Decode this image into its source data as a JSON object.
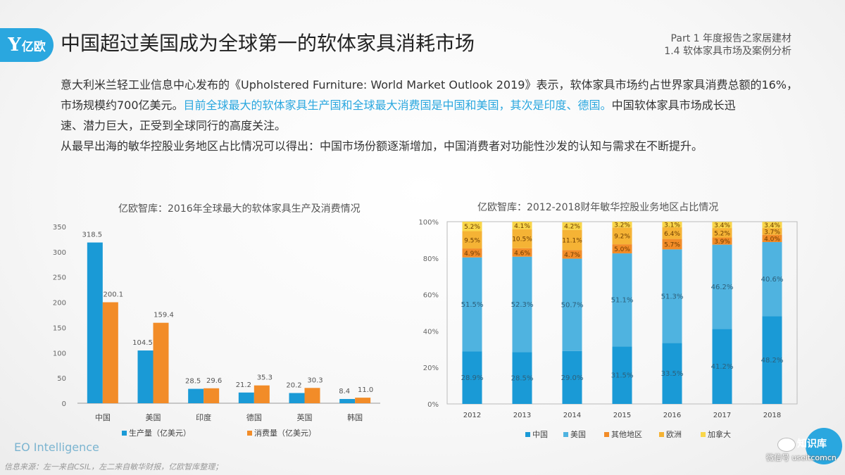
{
  "logo": {
    "mark": "Y",
    "text": "亿欧"
  },
  "header": {
    "title": "中国超过美国成为全球第一的软体家具消耗市场",
    "part_line1": "Part 1 年度报告之家居建材",
    "part_line2": "1.4 软体家具市场及案例分析"
  },
  "intro": {
    "line1": "意大利米兰轻工业信息中心发布的《Upholstered Furniture: World Market Outlook 2019》表示，软体家具市场约占世界家具消费总额的16%，",
    "line2a": "市场规模约700亿美元。",
    "line2b": "目前全球最大的软体家具生产国和全球最大消费国是中国和美国，其次是印度、德国。",
    "line2c": "中国软体家具市场成长迅",
    "line3": "速、潜力巨大，正受到全球同行的高度关注。",
    "line4": "从最早出海的敏华控股业务地区占比情况可以得出：中国市场份额逐渐增加，中国消费者对功能性沙发的认知与需求在不断提升。"
  },
  "chart_data": [
    {
      "type": "bar",
      "title": "亿欧智库：2016年全球最大的软体家具生产及消费情况",
      "categories": [
        "中国",
        "美国",
        "印度",
        "德国",
        "英国",
        "韩国"
      ],
      "series": [
        {
          "name": "生产量（亿美元）",
          "color": "#1a9ad6",
          "values": [
            318.5,
            104.5,
            28.5,
            21.2,
            20.2,
            8.4
          ]
        },
        {
          "name": "消费量（亿美元）",
          "color": "#f28c28",
          "values": [
            200.1,
            159.4,
            29.6,
            35.3,
            30.3,
            11.0
          ]
        }
      ],
      "ylim": [
        0,
        350
      ],
      "yticks": [
        0,
        50,
        100,
        150,
        200,
        250,
        300,
        350
      ],
      "legend": "bottom"
    },
    {
      "type": "bar",
      "stacked": true,
      "title": "亿欧智库：2012-2018财年敏华控股业务地区占比情况",
      "categories": [
        "2012",
        "2013",
        "2014",
        "2015",
        "2016",
        "2017",
        "2018"
      ],
      "series": [
        {
          "name": "中国",
          "color": "#1a9ad6",
          "values": [
            28.9,
            28.5,
            29.0,
            31.5,
            33.5,
            41.2,
            48.2
          ]
        },
        {
          "name": "美国",
          "color": "#4fb3e0",
          "values": [
            51.5,
            52.3,
            50.7,
            51.1,
            51.3,
            46.2,
            40.6
          ]
        },
        {
          "name": "其他地区",
          "color": "#f28c28",
          "values": [
            4.9,
            4.6,
            4.7,
            5.0,
            5.7,
            3.9,
            4.0
          ]
        },
        {
          "name": "欧洲",
          "color": "#f5b335",
          "values": [
            9.5,
            10.5,
            11.1,
            9.2,
            6.4,
            5.2,
            3.7
          ]
        },
        {
          "name": "加拿大",
          "color": "#f9d64a",
          "values": [
            5.2,
            4.1,
            4.2,
            3.2,
            3.1,
            3.4,
            3.4
          ]
        }
      ],
      "ylim": [
        0,
        100
      ],
      "yticks": [
        "0%",
        "20%",
        "40%",
        "60%",
        "80%",
        "100%"
      ],
      "legend": "bottom"
    }
  ],
  "footer": {
    "brand": "EO Intelligence",
    "source": "信息来源：左一来自CSIL，左二来自敏华财报，亿欧智库整理；",
    "watermark_name": "知识库",
    "watermark_id": "微信号 useitcomcn"
  }
}
